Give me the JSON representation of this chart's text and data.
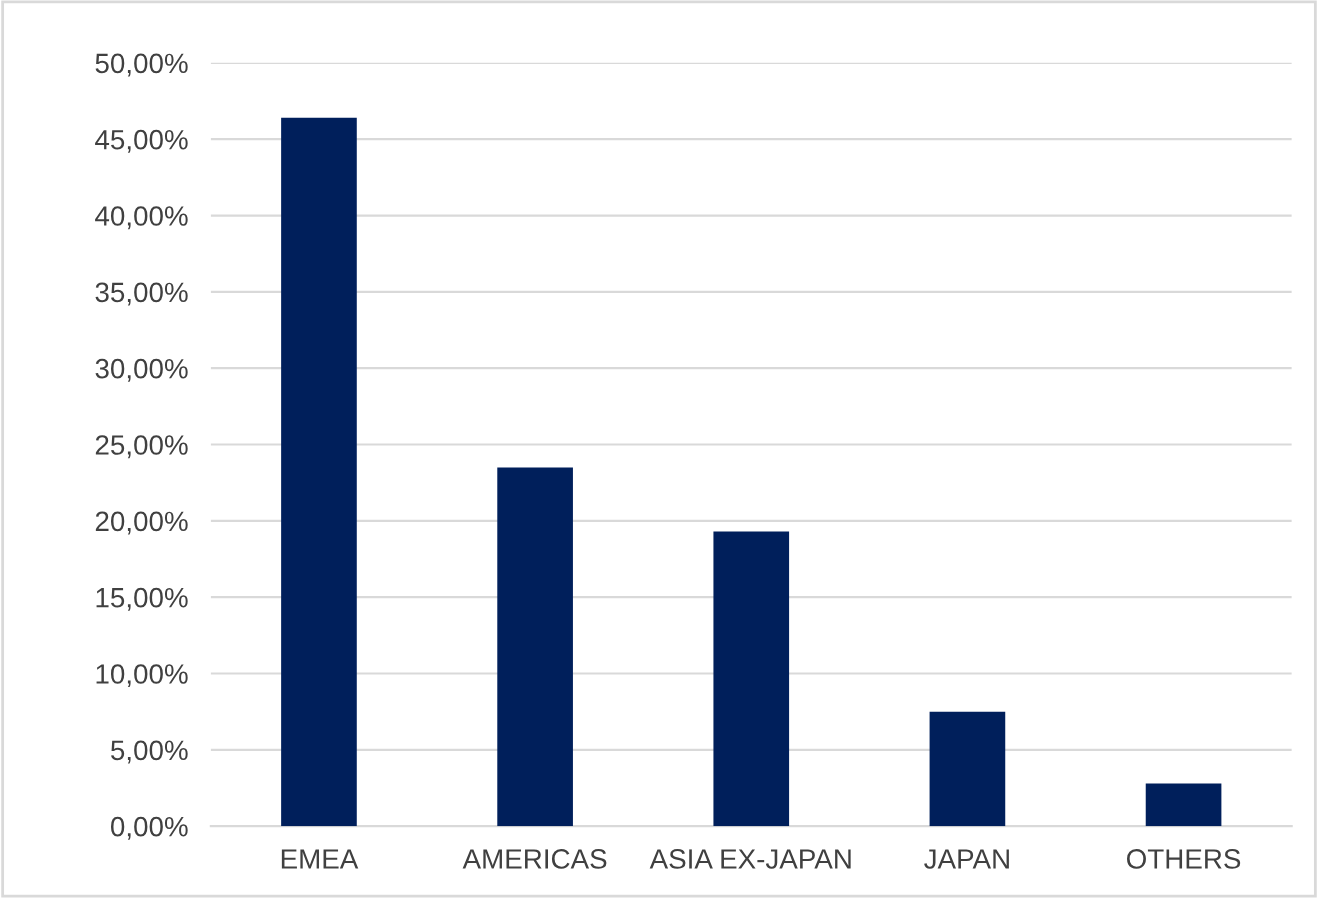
{
  "chart_data": {
    "type": "bar",
    "categories": [
      "EMEA",
      "AMERICAS",
      "ASIA EX-JAPAN",
      "JAPAN",
      "OTHERS"
    ],
    "values": [
      46.4,
      23.5,
      19.3,
      7.5,
      2.8
    ],
    "color": "#001f5b",
    "ylim": [
      0,
      50
    ],
    "yticks": [
      {
        "value": 0,
        "label": "0,00%"
      },
      {
        "value": 5,
        "label": "5,00%"
      },
      {
        "value": 10,
        "label": "10,00%"
      },
      {
        "value": 15,
        "label": "15,00%"
      },
      {
        "value": 20,
        "label": "20,00%"
      },
      {
        "value": 25,
        "label": "25,00%"
      },
      {
        "value": 30,
        "label": "30,00%"
      },
      {
        "value": 35,
        "label": "35,00%"
      },
      {
        "value": 40,
        "label": "40,00%"
      },
      {
        "value": 45,
        "label": "45,00%"
      },
      {
        "value": 50,
        "label": "50,00%"
      }
    ],
    "grid": "y",
    "legend": false
  }
}
